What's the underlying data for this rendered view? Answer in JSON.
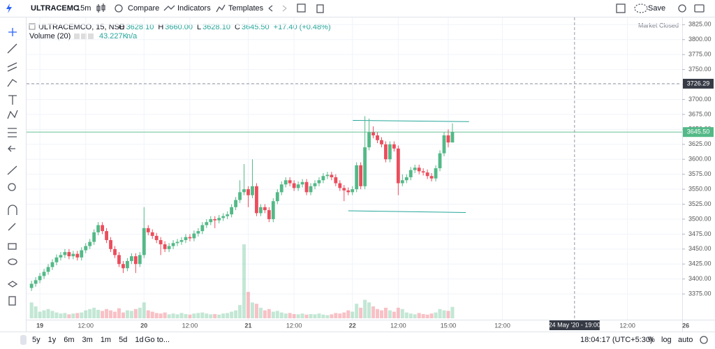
{
  "toolbar": {
    "symbol": "ULTRACEMC",
    "interval": "15m",
    "compare": "Compare",
    "indicators": "Indicators",
    "templates": "Templates",
    "save": "Save"
  },
  "legend": {
    "symbol": "ULTRACEMCO, 15, NSE",
    "items": [
      {
        "key": "O",
        "value": "3628.10"
      },
      {
        "key": "H",
        "value": "3660.00"
      },
      {
        "key": "L",
        "value": "3628.10"
      },
      {
        "key": "C",
        "value": "3645.50"
      }
    ],
    "change": "+17.40 (+0.48%)",
    "volume_title": "Volume (20)",
    "volume_value": "43.227K",
    "volume_ma": "n/a",
    "status": "Market Closed"
  },
  "chart_data": {
    "type": "candlestick",
    "up_color": "#53b987",
    "down_color": "#eb4d5c",
    "x": [
      0,
      1,
      2,
      3,
      4,
      5,
      6,
      7,
      8,
      9,
      10,
      11,
      12,
      13,
      14,
      15,
      16,
      17,
      18,
      19,
      20,
      21,
      22,
      23,
      24,
      25,
      26,
      27,
      28,
      29,
      30,
      31,
      32,
      33,
      34,
      35,
      36,
      37,
      38,
      39,
      40,
      41,
      42,
      43,
      44,
      45,
      46,
      47,
      48,
      49,
      50,
      51,
      52,
      53,
      54,
      55,
      56,
      57,
      58,
      59,
      60,
      61,
      62,
      63,
      64,
      65,
      66,
      67,
      68,
      69,
      70,
      71,
      72,
      73,
      74,
      75,
      76,
      77,
      78,
      79,
      80,
      81,
      82,
      83,
      84,
      85,
      86,
      87,
      88,
      89,
      90,
      91,
      92,
      93,
      94,
      95,
      96,
      97,
      98,
      99,
      100,
      101
    ],
    "open": [
      3385,
      3392,
      3398,
      3405,
      3412,
      3420,
      3428,
      3436,
      3440,
      3445,
      3438,
      3442,
      3436,
      3448,
      3455,
      3462,
      3478,
      3490,
      3480,
      3465,
      3450,
      3440,
      3425,
      3418,
      3430,
      3438,
      3425,
      3440,
      3485,
      3478,
      3472,
      3465,
      3458,
      3450,
      3455,
      3460,
      3462,
      3465,
      3470,
      3468,
      3476,
      3480,
      3490,
      3495,
      3500,
      3498,
      3502,
      3505,
      3508,
      3520,
      3532,
      3545,
      3550,
      3540,
      3555,
      3510,
      3520,
      3515,
      3500,
      3530,
      3545,
      3558,
      3565,
      3560,
      3552,
      3558,
      3562,
      3545,
      3555,
      3560,
      3565,
      3572,
      3574,
      3570,
      3560,
      3552,
      3548,
      3545,
      3550,
      3590,
      3555,
      3620,
      3645,
      3640,
      3632,
      3625,
      3600,
      3625,
      3618,
      3560,
      3565,
      3570,
      3582,
      3586,
      3580,
      3578,
      3572,
      3568,
      3585,
      3610,
      3640,
      3628.1
    ],
    "high": [
      3397,
      3403,
      3410,
      3417,
      3425,
      3433,
      3441,
      3445,
      3450,
      3450,
      3447,
      3447,
      3453,
      3460,
      3467,
      3483,
      3495,
      3495,
      3485,
      3470,
      3455,
      3445,
      3430,
      3435,
      3443,
      3443,
      3445,
      3520,
      3490,
      3483,
      3477,
      3470,
      3463,
      3460,
      3465,
      3467,
      3470,
      3475,
      3475,
      3481,
      3485,
      3495,
      3500,
      3505,
      3505,
      3507,
      3510,
      3513,
      3525,
      3537,
      3565,
      3592,
      3555,
      3600,
      3560,
      3525,
      3525,
      3520,
      3535,
      3550,
      3563,
      3570,
      3570,
      3565,
      3563,
      3567,
      3567,
      3560,
      3565,
      3570,
      3577,
      3579,
      3579,
      3575,
      3565,
      3557,
      3553,
      3555,
      3595,
      3595,
      3672,
      3668,
      3655,
      3645,
      3637,
      3630,
      3630,
      3630,
      3623,
      3575,
      3575,
      3587,
      3591,
      3591,
      3585,
      3583,
      3577,
      3590,
      3615,
      3645,
      3650,
      3660
    ],
    "low": [
      3380,
      3387,
      3393,
      3400,
      3407,
      3415,
      3423,
      3431,
      3435,
      3433,
      3433,
      3431,
      3431,
      3443,
      3450,
      3457,
      3473,
      3475,
      3460,
      3445,
      3435,
      3420,
      3410,
      3413,
      3425,
      3410,
      3420,
      3435,
      3473,
      3467,
      3460,
      3440,
      3445,
      3445,
      3450,
      3455,
      3457,
      3460,
      3463,
      3463,
      3471,
      3475,
      3485,
      3490,
      3485,
      3493,
      3497,
      3500,
      3503,
      3515,
      3527,
      3540,
      3520,
      3535,
      3505,
      3505,
      3510,
      3495,
      3495,
      3525,
      3540,
      3553,
      3555,
      3547,
      3547,
      3553,
      3540,
      3540,
      3550,
      3555,
      3560,
      3567,
      3565,
      3555,
      3547,
      3530,
      3540,
      3540,
      3545,
      3550,
      3550,
      3615,
      3635,
      3627,
      3620,
      3595,
      3595,
      3613,
      3540,
      3555,
      3560,
      3565,
      3577,
      3575,
      3573,
      3567,
      3563,
      3563,
      3580,
      3605,
      3620,
      3628.1
    ],
    "close": [
      3392,
      3398,
      3405,
      3412,
      3420,
      3428,
      3436,
      3440,
      3445,
      3438,
      3442,
      3436,
      3448,
      3455,
      3462,
      3478,
      3490,
      3480,
      3465,
      3450,
      3440,
      3425,
      3418,
      3430,
      3438,
      3425,
      3440,
      3485,
      3478,
      3472,
      3465,
      3458,
      3450,
      3455,
      3460,
      3462,
      3465,
      3470,
      3468,
      3476,
      3480,
      3490,
      3495,
      3500,
      3498,
      3502,
      3505,
      3508,
      3520,
      3532,
      3545,
      3550,
      3540,
      3555,
      3510,
      3520,
      3515,
      3500,
      3530,
      3545,
      3558,
      3565,
      3560,
      3552,
      3558,
      3562,
      3545,
      3555,
      3560,
      3565,
      3572,
      3574,
      3570,
      3560,
      3552,
      3548,
      3545,
      3550,
      3590,
      3555,
      3620,
      3645,
      3640,
      3632,
      3625,
      3600,
      3625,
      3618,
      3560,
      3565,
      3570,
      3582,
      3586,
      3580,
      3578,
      3572,
      3568,
      3585,
      3610,
      3640,
      3628.1,
      3645.5
    ],
    "volume": [
      60,
      45,
      25,
      30,
      35,
      28,
      22,
      18,
      20,
      15,
      18,
      20,
      22,
      30,
      35,
      40,
      32,
      28,
      35,
      30,
      25,
      38,
      22,
      30,
      28,
      35,
      40,
      60,
      30,
      25,
      20,
      18,
      22,
      15,
      18,
      15,
      20,
      16,
      14,
      18,
      20,
      22,
      18,
      15,
      16,
      14,
      18,
      20,
      25,
      30,
      50,
      280,
      100,
      60,
      55,
      40,
      30,
      35,
      25,
      28,
      22,
      18,
      20,
      16,
      15,
      18,
      14,
      16,
      15,
      18,
      14,
      12,
      15,
      20,
      18,
      22,
      30,
      25,
      55,
      40,
      70,
      60,
      45,
      35,
      30,
      40,
      30,
      25,
      40,
      35,
      22,
      18,
      15,
      20,
      16,
      14,
      18,
      22,
      35,
      30,
      28,
      43.227
    ],
    "last_price_label": "3645.50",
    "xlim": [
      -1.2,
      155.8
    ],
    "ylim": [
      3332,
      3837
    ],
    "xticks": [
      {
        "value": 2,
        "label": "19"
      },
      {
        "value": 13,
        "label": "12:00"
      },
      {
        "value": 27,
        "label": "20"
      },
      {
        "value": 38,
        "label": "12:00"
      },
      {
        "value": 52,
        "label": "21"
      },
      {
        "value": 63,
        "label": "12:00"
      },
      {
        "value": 77,
        "label": "22"
      },
      {
        "value": 88,
        "label": "12:00"
      },
      {
        "value": 100,
        "label": "15:00"
      },
      {
        "value": 113,
        "label": "12:00"
      },
      {
        "value": 143,
        "label": "12:00"
      },
      {
        "value": 157,
        "label": "26"
      }
    ],
    "yticks": [
      {
        "value": 3375,
        "label": "3375.00"
      },
      {
        "value": 3400,
        "label": "3400.00"
      },
      {
        "value": 3425,
        "label": "3425.00"
      },
      {
        "value": 3450,
        "label": "3450.00"
      },
      {
        "value": 3475,
        "label": "3475.00"
      },
      {
        "value": 3500,
        "label": "3500.00"
      },
      {
        "value": 3525,
        "label": "3525.00"
      },
      {
        "value": 3550,
        "label": "3550.00"
      },
      {
        "value": 3575,
        "label": "3575.00"
      },
      {
        "value": 3600,
        "label": "3600.00"
      },
      {
        "value": 3625,
        "label": "3625.00"
      },
      {
        "value": 3650,
        "label": "3650.00"
      },
      {
        "value": 3675,
        "label": "3675.00"
      },
      {
        "value": 3700,
        "label": "3700.00"
      },
      {
        "value": 3725,
        "label": "3725.00"
      },
      {
        "value": 3750,
        "label": "3750.00"
      },
      {
        "value": 3775,
        "label": "3775.00"
      },
      {
        "value": 3800,
        "label": "3800.00"
      },
      {
        "value": 3825,
        "label": "3825.00"
      }
    ],
    "grid": true,
    "drawings": [
      {
        "x": [
          77.1,
          105
        ],
        "y": [
          3665,
          3663
        ],
        "color": "#26a69a"
      },
      {
        "x": [
          76,
          104.2
        ],
        "y": [
          3514,
          3511
        ],
        "color": "#26a69a"
      }
    ],
    "crosshair": {
      "x": 130.3,
      "y": 3726.29,
      "x_label": "24 May '20 - 19:00",
      "y_label": "3726.29"
    }
  },
  "bottom_bar": {
    "ranges": [
      "5y",
      "1y",
      "6m",
      "3m",
      "1m",
      "5d",
      "1d"
    ],
    "goto": "Go to...",
    "clock": "18:04:17 (UTC+5:30)",
    "percent": "%",
    "log": "log",
    "auto": "auto"
  }
}
